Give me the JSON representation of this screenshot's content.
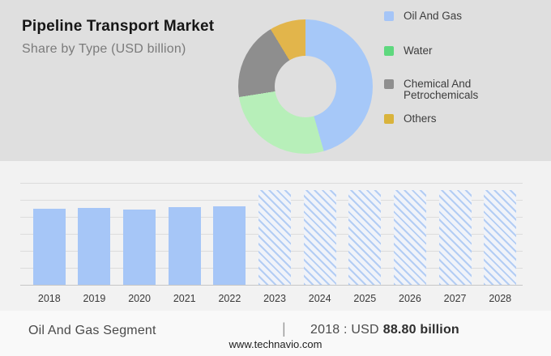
{
  "header": {
    "title": "Pipeline Transport Market",
    "subtitle": "Share by Type (USD billion)"
  },
  "legend": {
    "items": [
      {
        "label": "Oil And Gas",
        "color": "#a5c5f7"
      },
      {
        "label": "Water",
        "color": "#5ed87e"
      },
      {
        "label": "Chemical And Petrochemicals",
        "color": "#8f8f8f"
      },
      {
        "label": "Others",
        "color": "#d9b33c"
      }
    ]
  },
  "chart_data": [
    {
      "type": "pie",
      "subtype": "donut",
      "title": "Share by Type (USD billion)",
      "labels": [
        "Oil And Gas",
        "Water",
        "Chemical And Petrochemicals",
        "Others"
      ],
      "values_pct": [
        45.6,
        26.9,
        18.8,
        8.7
      ],
      "colors": [
        "#a6c8f8",
        "#b7efb9",
        "#8e8e8e",
        "#e2b54b"
      ],
      "hole_ratio": 0.46,
      "start_angle_deg": 0,
      "legend_position": "right"
    },
    {
      "type": "bar",
      "categories": [
        "2018",
        "2019",
        "2020",
        "2021",
        "2022",
        "2023",
        "2024",
        "2025",
        "2026",
        "2027",
        "2028"
      ],
      "values": [
        88.8,
        89.7,
        87.9,
        90.4,
        91.6,
        110.2,
        110.2,
        110.2,
        110.2,
        110.2,
        110.2
      ],
      "forecast_years": [
        "2023",
        "2024",
        "2025",
        "2026",
        "2027",
        "2028"
      ],
      "labeled_point": {
        "year": "2018",
        "value_text": "USD 88.80 billion"
      },
      "bar_color": "#a6c6f7",
      "forecast_style": "diagonal-hatch",
      "xlabel": "",
      "ylabel": "",
      "gridlines": true
    }
  ],
  "footer": {
    "segment_label": "Oil And Gas Segment",
    "divider": "|",
    "value_prefix": "2018 : USD",
    "value_bold": "88.80 billion",
    "website": "www.technavio.com"
  },
  "colors": {
    "header_bg": "#dfdfdf",
    "chart_bg": "#f2f2f2",
    "footer_bg": "#f9f9f9",
    "gridline": "#dcdcdc",
    "axis_line": "#c6c6c6",
    "bar_blue": "#a6c6f7"
  }
}
